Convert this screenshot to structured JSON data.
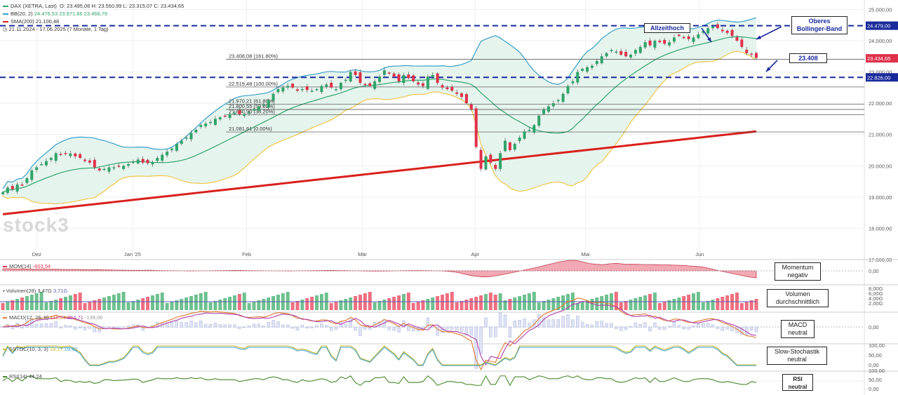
{
  "legend": {
    "instrument": "DAX (XETRA, Last)",
    "ohlc": "O: 23.495,06  H: 23.550,99  L: 23.315,07  C: 23.434,65",
    "bb_label": "BB(20, 2)",
    "bb_values": "24.476,53  23.971,66  23.466,79",
    "sma_label": "SMA(200)",
    "sma_value": "21.100,48",
    "period": "21.11.2024 - 17.06.2025  (7 Monate, 1 Tag)"
  },
  "logo_text": "stock3",
  "annotations": {
    "ath": "Allzeithoch",
    "upper_bb": "Oberes Bollinger-Band",
    "level": "23.408",
    "momentum": "Momentum negativ",
    "volume": "Volumen durchschnittlich",
    "macd": "MACD neutral",
    "sstoc": "Slow-Stochastik neutral",
    "rsi": "RSI neutral"
  },
  "colors": {
    "up": "#2fa36b",
    "down": "#e0314b",
    "bb_band": "#3a9fc8",
    "bb_mid": "#2fa36b",
    "bb_lower": "#f0c64a",
    "sma": "#d9201c",
    "dashed": "#1a2a9c",
    "fill": "#e6f4ee"
  },
  "chart_data": {
    "type": "candlestick",
    "y_ticks": [
      "25.000,00",
      "24.000,00",
      "23.000,00",
      "22.000,00",
      "21.000,00",
      "20.000,00",
      "19.000,00",
      "18.000,00",
      "17.000,00"
    ],
    "ylim": [
      17000,
      25300
    ],
    "x_labels": [
      "Dez",
      "Jan '25",
      "Feb",
      "Mär",
      "Apr",
      "Mai",
      "Jun"
    ],
    "horizontal_levels": [
      {
        "value": 24479.0,
        "label": "24.479,00",
        "style": "dashed"
      },
      {
        "value": 22826.0,
        "label": "22.826,00",
        "style": "dashed"
      },
      {
        "value": 23434.65,
        "label": "23.434,65",
        "style": "last"
      }
    ],
    "fibonacci": [
      {
        "value": 23408.08,
        "label": "23.408,08 (161.80%)"
      },
      {
        "value": 22519.48,
        "label": "22.519,48 (100.00%)"
      },
      {
        "value": 21970.21,
        "label": "21.970,21 (61.80%)"
      },
      {
        "value": 21800.55,
        "label": "21.800,55 (50.00%)"
      },
      {
        "value": 21630.9,
        "label": "21.630,90 (38.20%)"
      },
      {
        "value": 21081.61,
        "label": "21.081,61 (0.00%)"
      }
    ],
    "close": [
      19150,
      19300,
      19250,
      19400,
      19380,
      19600,
      19850,
      19950,
      20050,
      20150,
      20250,
      20400,
      20350,
      20380,
      20390,
      20300,
      20250,
      20150,
      20100,
      19950,
      19850,
      19900,
      19950,
      19950,
      19970,
      20000,
      20050,
      20130,
      20200,
      20100,
      20080,
      20120,
      20250,
      20350,
      20450,
      20550,
      20700,
      20800,
      20900,
      21050,
      21150,
      21300,
      21350,
      21400,
      21500,
      21550,
      21600,
      21650,
      21700,
      21650,
      21650,
      21700,
      21800,
      21900,
      21950,
      22100,
      22300,
      22450,
      22500,
      22550,
      22500,
      22400,
      22450,
      22420,
      22400,
      22450,
      22550,
      22600,
      22500,
      22450,
      22650,
      22750,
      23000,
      22900,
      22650,
      22600,
      22550,
      22700,
      22850,
      23050,
      22950,
      22850,
      22700,
      22900,
      22800,
      22700,
      22600,
      22550,
      22850,
      22900,
      22650,
      22500,
      22450,
      22400,
      22300,
      22200,
      22000,
      21800,
      20600,
      19900,
      20300,
      20100,
      19900,
      20400,
      20800,
      20500,
      20700,
      20900,
      21100,
      21150,
      21300,
      21600,
      21800,
      21900,
      22000,
      22100,
      22300,
      22550,
      22700,
      23000,
      23100,
      23150,
      23200,
      23350,
      23500,
      23600,
      23700,
      23650,
      23550,
      23500,
      23550,
      23700,
      23800,
      23950,
      23850,
      24000,
      23950,
      23900,
      23950,
      24100,
      24150,
      24100,
      24050,
      24100,
      24200,
      24300,
      24400,
      24450,
      24400,
      24300,
      24250,
      24150,
      24000,
      23800,
      23600,
      23550,
      23450
    ]
  },
  "momentum": {
    "label": "MOM(14)",
    "value": "-603,54",
    "ticks": [
      "0,00"
    ],
    "values": [
      180,
      170,
      150,
      160,
      140,
      130,
      150,
      140,
      130,
      120,
      110,
      120,
      100,
      90,
      100,
      80,
      70,
      60,
      50,
      40,
      40,
      45,
      50,
      30,
      20,
      10,
      5,
      0,
      -10,
      -5,
      0,
      5,
      10,
      20,
      30,
      40,
      30,
      20,
      10,
      5,
      0,
      0,
      -5,
      -10,
      0,
      5,
      10,
      20,
      30,
      40,
      30,
      20,
      10,
      0,
      -10,
      -20,
      -30,
      -20,
      -10,
      0,
      10,
      20,
      30,
      20,
      10,
      0,
      -10,
      -50,
      -120,
      -250,
      -380,
      -460,
      -520,
      -500,
      -420,
      -320,
      -200,
      -80,
      40,
      160,
      280,
      420,
      560,
      700,
      820,
      900,
      880,
      760,
      620,
      560,
      520,
      600,
      640,
      580,
      560,
      560,
      540,
      540,
      520,
      510,
      500,
      480,
      460,
      420,
      380,
      320,
      200,
      60,
      -60,
      -180,
      -300,
      -420,
      -540,
      -603
    ]
  },
  "volume": {
    "label": "Volumen(28)",
    "value": "3,47G",
    "avg": "3,71G",
    "ticks": [
      "8,00G",
      "6,00G",
      "4,00G",
      "2,00G"
    ]
  },
  "macd": {
    "label": "MACD(12, 26, 9)",
    "value": "115,64",
    "signal": "254,71",
    "hist": "-139,06",
    "ticks": [
      "0,00"
    ]
  },
  "sstoc": {
    "label": "SSTOC(10, 3, 3)",
    "value": "18,17",
    "signal": "19,60",
    "ticks": [
      "100,00",
      "50,00",
      "0,00"
    ]
  },
  "rsi": {
    "label": "RSI(14)",
    "value": "44,24",
    "ticks": [
      "100,00",
      "50,00",
      "0,00"
    ]
  }
}
